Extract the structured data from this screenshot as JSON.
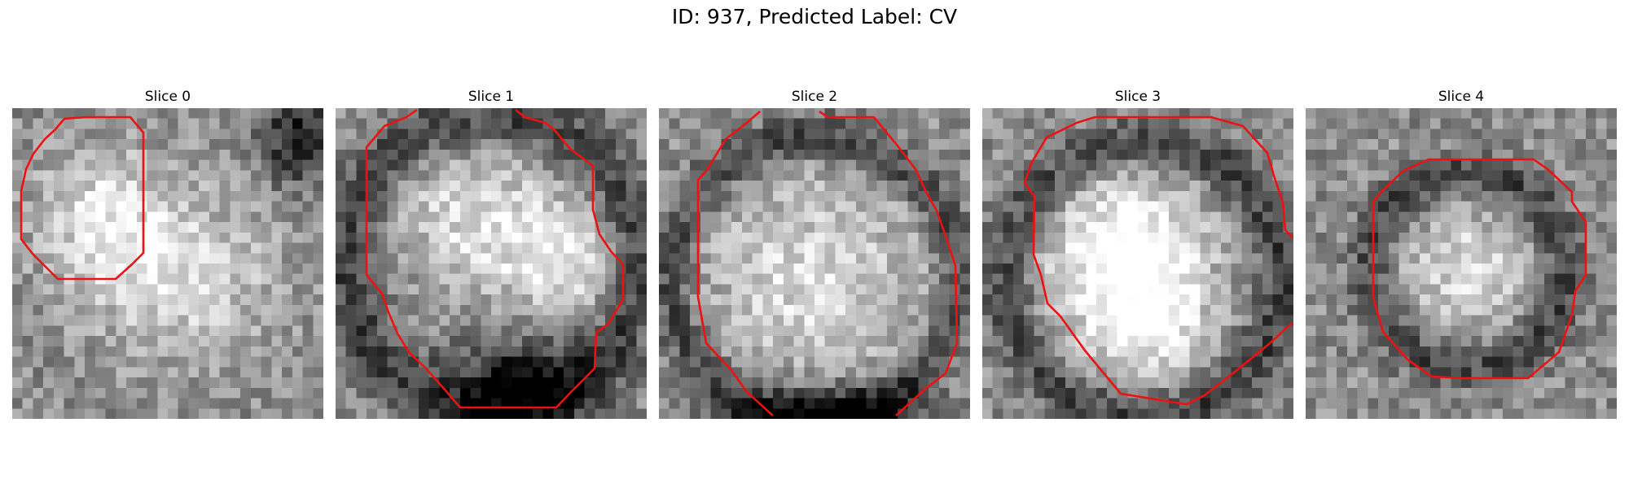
{
  "figure": {
    "title": "ID: 937, Predicted Label: CV"
  },
  "colors": {
    "outline": "#ee1111",
    "background": "#ffffff"
  },
  "panels": [
    {
      "title": "Slice 0"
    },
    {
      "title": "Slice 1"
    },
    {
      "title": "Slice 2"
    },
    {
      "title": "Slice 3"
    },
    {
      "title": "Slice 4"
    }
  ]
}
